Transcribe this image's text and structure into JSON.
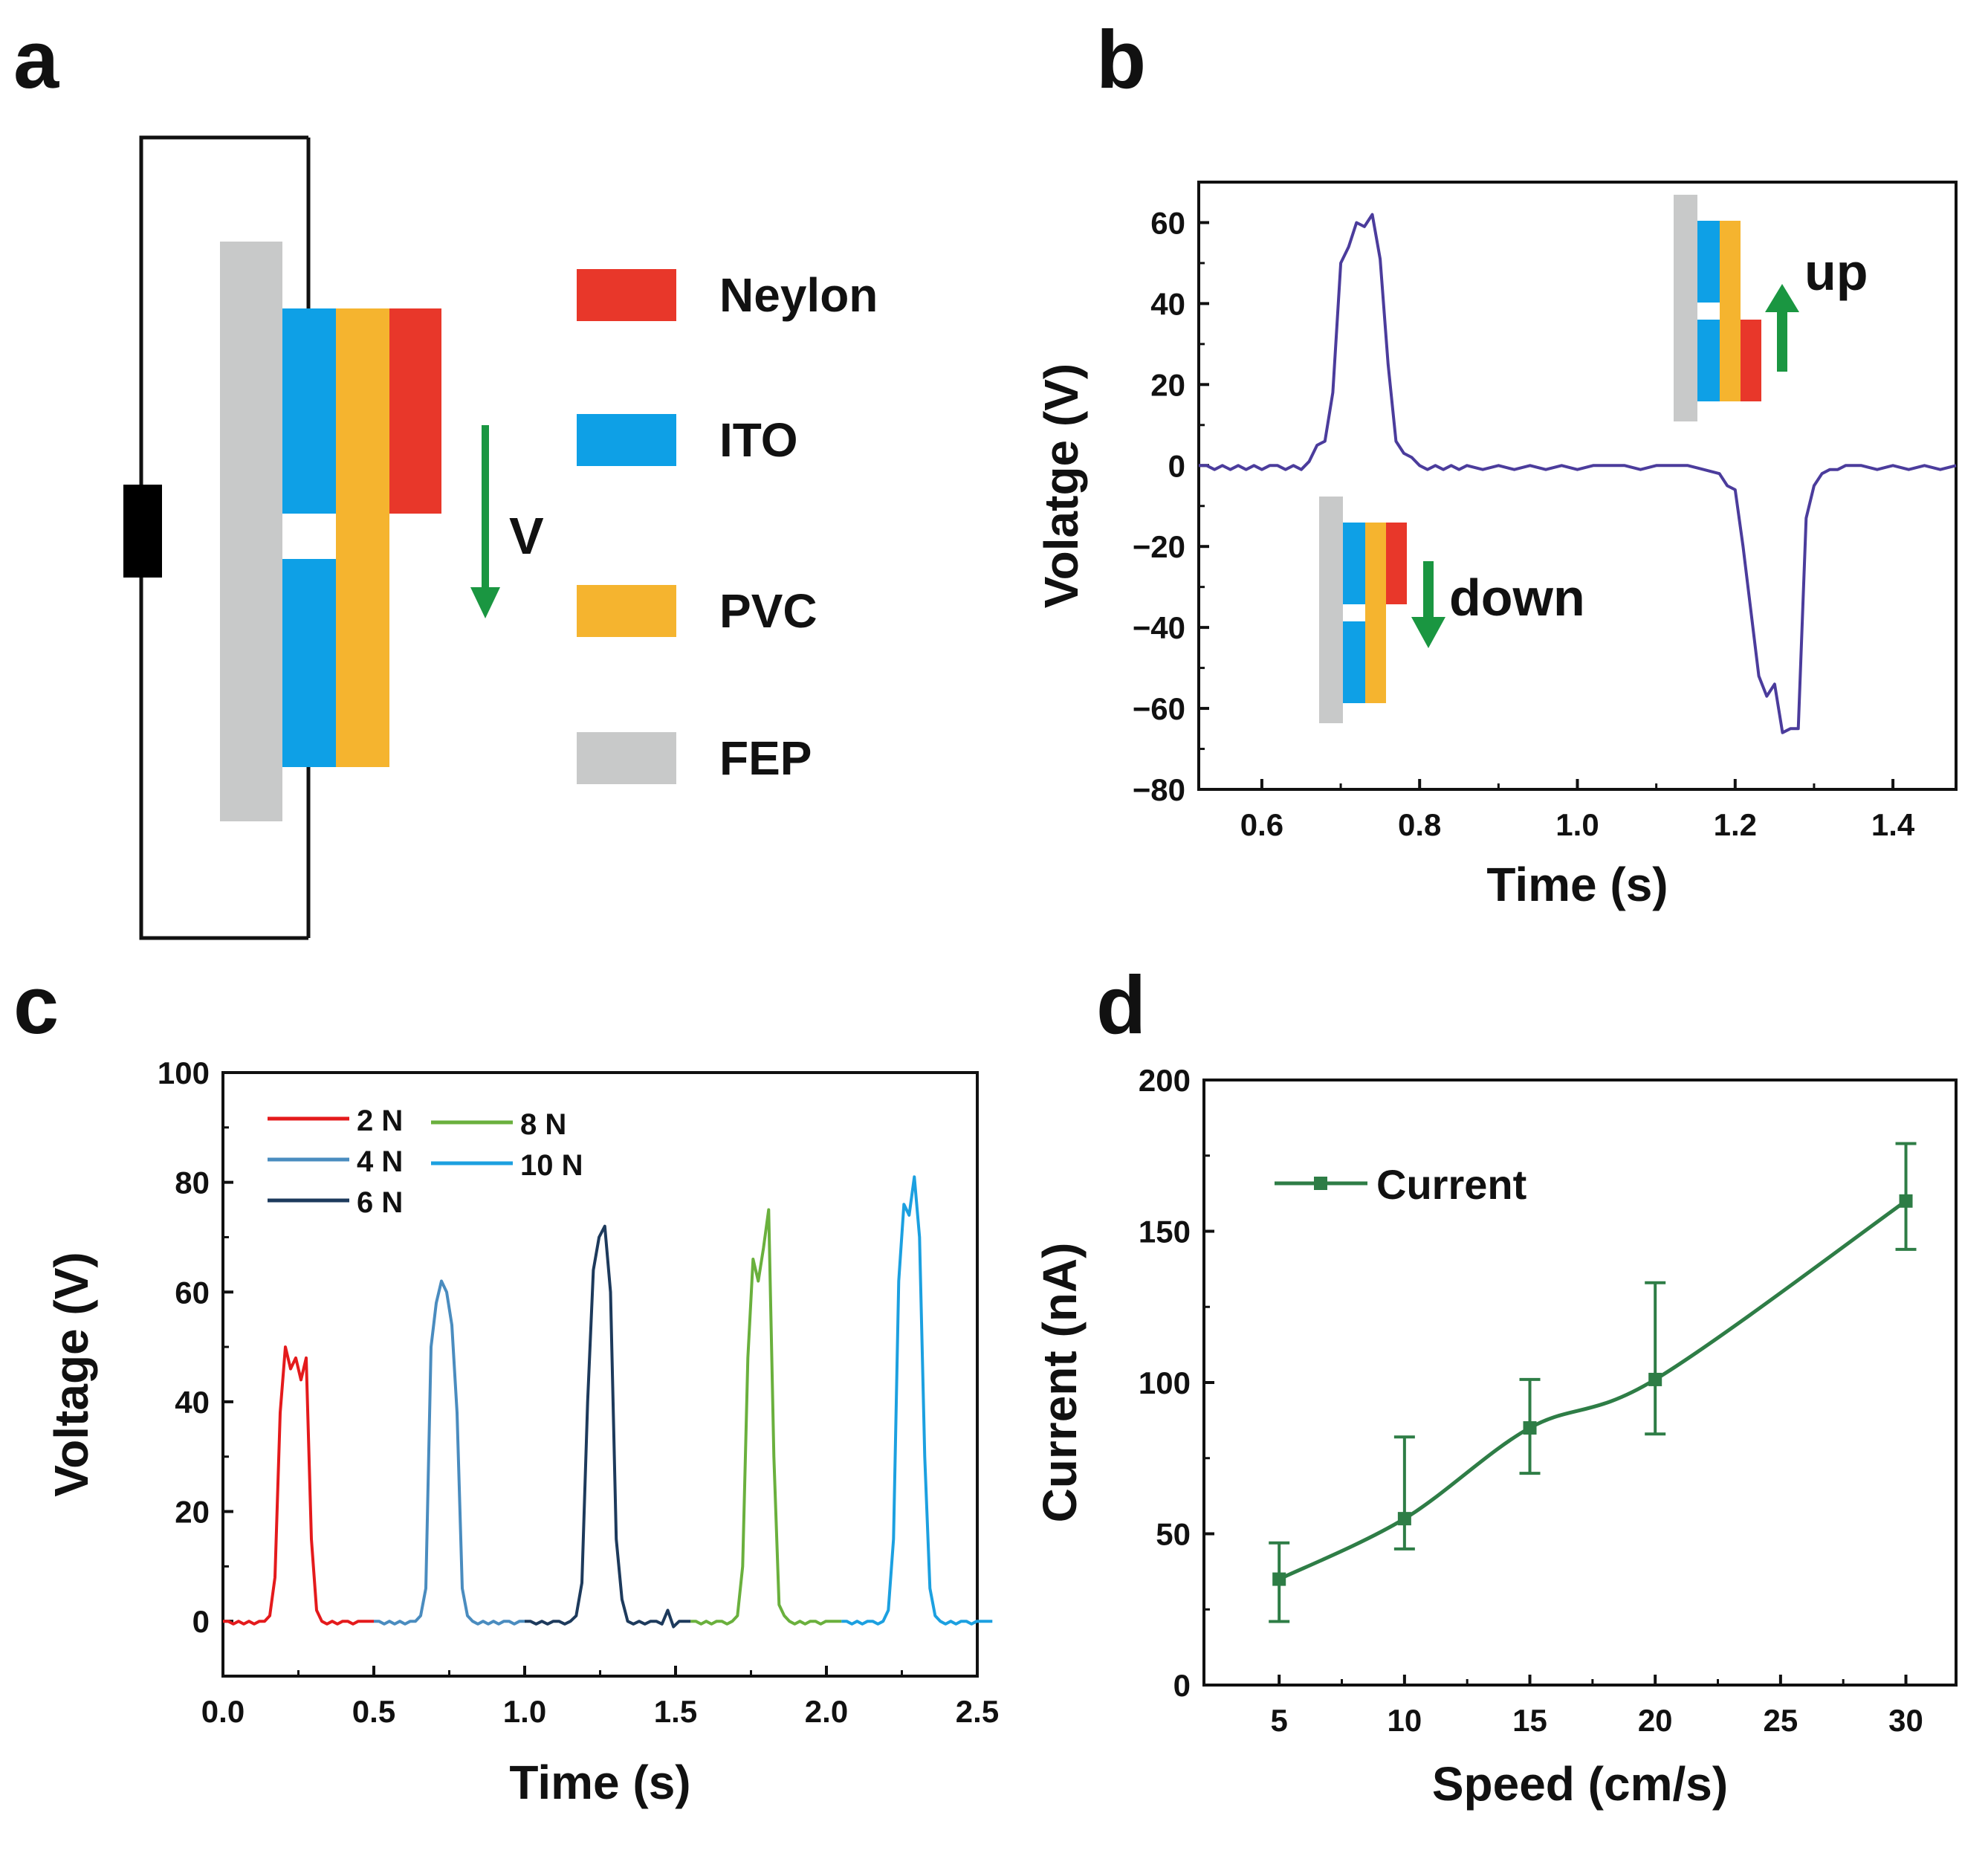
{
  "panel_labels": {
    "a": "a",
    "b": "b",
    "c": "c",
    "d": "d"
  },
  "schematic": {
    "legend": [
      {
        "name": "Neylon",
        "color": "#e8372a"
      },
      {
        "name": "ITO",
        "color": "#0ea0e6"
      },
      {
        "name": "PVC",
        "color": "#f5b42f"
      },
      {
        "name": "FEP",
        "color": "#c8c9c9"
      }
    ],
    "arrow_label": "V",
    "arrow_color": "#1a9641"
  },
  "chart_data": [
    {
      "panel": "b",
      "type": "line",
      "xlabel": "Time (s)",
      "ylabel": "Volatge (V)",
      "xlim": [
        0.52,
        1.48
      ],
      "ylim": [
        -80,
        70
      ],
      "xticks": [
        0.6,
        0.8,
        1.0,
        1.2,
        1.4
      ],
      "xtick_labels": [
        "0.6",
        "0.8",
        "1.0",
        "1.2",
        "1.4"
      ],
      "yticks": [
        -80,
        -60,
        -40,
        -20,
        0,
        20,
        40,
        60
      ],
      "ytick_labels": [
        "−80",
        "−60",
        "−40",
        "−20",
        "0",
        "20",
        "40",
        "60"
      ],
      "color": "#4b3c9c",
      "x": [
        0.52,
        0.53,
        0.54,
        0.55,
        0.56,
        0.57,
        0.58,
        0.59,
        0.6,
        0.61,
        0.62,
        0.63,
        0.64,
        0.65,
        0.66,
        0.67,
        0.68,
        0.69,
        0.7,
        0.71,
        0.72,
        0.73,
        0.74,
        0.75,
        0.76,
        0.77,
        0.78,
        0.79,
        0.8,
        0.81,
        0.82,
        0.83,
        0.84,
        0.85,
        0.86,
        0.88,
        0.9,
        0.92,
        0.94,
        0.96,
        0.98,
        1.0,
        1.02,
        1.04,
        1.06,
        1.08,
        1.1,
        1.12,
        1.14,
        1.16,
        1.18,
        1.19,
        1.2,
        1.21,
        1.22,
        1.23,
        1.24,
        1.25,
        1.26,
        1.27,
        1.28,
        1.29,
        1.3,
        1.31,
        1.32,
        1.33,
        1.34,
        1.36,
        1.38,
        1.4,
        1.42,
        1.44,
        1.46,
        1.48
      ],
      "y": [
        0,
        0,
        -1,
        0,
        -1,
        0,
        -1,
        0,
        -1,
        0,
        0,
        -1,
        0,
        -1,
        1,
        5,
        6,
        18,
        50,
        54,
        60,
        59,
        62,
        51,
        25,
        6,
        3,
        2,
        0,
        -1,
        0,
        -1,
        0,
        -1,
        0,
        -1,
        0,
        -1,
        0,
        -1,
        0,
        -1,
        0,
        0,
        0,
        -1,
        0,
        0,
        0,
        -1,
        -2,
        -5,
        -6,
        -20,
        -36,
        -52,
        -57,
        -54,
        -66,
        -65,
        -65,
        -13,
        -5,
        -2,
        -1,
        -1,
        0,
        0,
        -1,
        0,
        -1,
        0,
        -1,
        0
      ],
      "annotations": [
        "up",
        "down"
      ]
    },
    {
      "panel": "c",
      "type": "line",
      "xlabel": "Time (s)",
      "ylabel": "Voltage (V)",
      "xlim": [
        0,
        2.5
      ],
      "ylim": [
        -10,
        100
      ],
      "xticks": [
        0.0,
        0.5,
        1.0,
        1.5,
        2.0,
        2.5
      ],
      "xtick_labels": [
        "0.0",
        "0.5",
        "1.0",
        "1.5",
        "2.0",
        "2.5"
      ],
      "yticks": [
        0,
        20,
        40,
        60,
        80,
        100
      ],
      "ytick_labels": [
        "0",
        "20",
        "40",
        "60",
        "80",
        "100"
      ],
      "series": [
        {
          "name": "2 N",
          "color": "#e41a1c",
          "x_start": 0.0,
          "x_end": 0.5,
          "peak_x": 0.25,
          "y": [
            0,
            0,
            -0.5,
            0,
            -0.5,
            0,
            -0.5,
            0,
            0,
            1,
            8,
            38,
            50,
            46,
            48,
            44,
            48,
            15,
            2,
            0,
            -0.5,
            0,
            -0.5,
            0,
            0,
            -0.5,
            0,
            0,
            0,
            0
          ]
        },
        {
          "name": "4 N",
          "color": "#4a8cbf",
          "x_start": 0.5,
          "x_end": 1.0,
          "peak_x": 0.75,
          "y": [
            0,
            0,
            -0.5,
            0,
            -0.5,
            0,
            -0.5,
            0,
            0,
            1,
            6,
            50,
            58,
            62,
            60,
            54,
            38,
            6,
            1,
            0,
            -0.5,
            0,
            -0.5,
            0,
            -0.5,
            0,
            0,
            -0.5,
            0,
            0
          ]
        },
        {
          "name": "6 N",
          "color": "#1d3a5c",
          "x_start": 1.0,
          "x_end": 1.55,
          "peak_x": 1.27,
          "y": [
            0,
            0,
            -0.5,
            0,
            -0.5,
            0,
            0,
            -0.5,
            0,
            1,
            7,
            40,
            64,
            70,
            72,
            60,
            15,
            4,
            0,
            -0.5,
            0,
            -0.5,
            0,
            0,
            -0.5,
            2,
            -1,
            0,
            0,
            0
          ]
        },
        {
          "name": "8 N",
          "color": "#6ab03d",
          "x_start": 1.55,
          "x_end": 2.05,
          "peak_x": 1.77,
          "y": [
            0,
            0,
            -0.5,
            0,
            -0.5,
            0,
            0,
            -0.5,
            0,
            1,
            10,
            48,
            66,
            62,
            68,
            75,
            30,
            3,
            1,
            0,
            -0.5,
            0,
            -0.5,
            0,
            0,
            -0.5,
            0,
            0,
            0,
            0
          ]
        },
        {
          "name": "10 N",
          "color": "#1ca0e0",
          "x_start": 2.05,
          "x_end": 2.55,
          "peak_x": 2.28,
          "y": [
            0,
            0,
            -0.5,
            0,
            -0.5,
            0,
            0,
            -0.5,
            0,
            2,
            15,
            62,
            76,
            74,
            81,
            70,
            30,
            6,
            1,
            0,
            -0.5,
            0,
            -0.5,
            0,
            0,
            -0.5,
            0,
            0,
            0,
            0
          ]
        }
      ]
    },
    {
      "panel": "d",
      "type": "line",
      "xlabel": "Speed (cm/s)",
      "ylabel": "Current (nA)",
      "xlim": [
        2,
        32
      ],
      "ylim": [
        0,
        200
      ],
      "xticks": [
        5,
        10,
        15,
        20,
        25,
        30
      ],
      "xtick_labels": [
        "5",
        "10",
        "15",
        "20",
        "25",
        "30"
      ],
      "yticks": [
        0,
        50,
        100,
        150,
        200
      ],
      "ytick_labels": [
        "0",
        "50",
        "100",
        "150",
        "200"
      ],
      "series": [
        {
          "name": "Current",
          "color": "#2e7d46",
          "x": [
            5,
            10,
            15,
            20,
            30
          ],
          "y": [
            35,
            55,
            85,
            101,
            160
          ],
          "err_low": [
            21,
            45,
            70,
            83,
            144
          ],
          "err_high": [
            47,
            82,
            101,
            133,
            179
          ]
        }
      ]
    }
  ]
}
